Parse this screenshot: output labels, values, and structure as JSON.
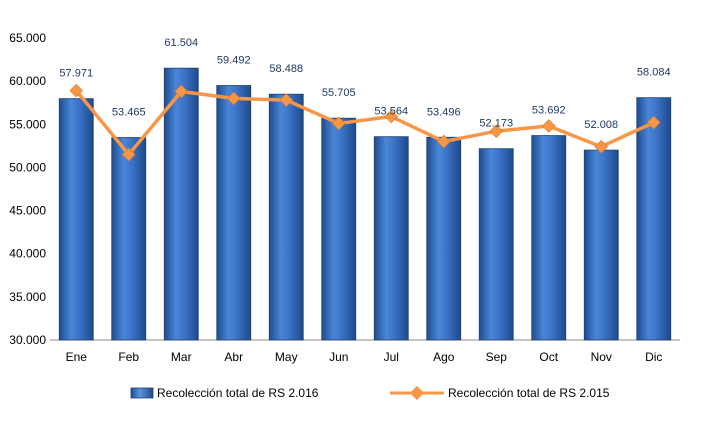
{
  "chart_data": {
    "type": "bar",
    "categories": [
      "Ene",
      "Feb",
      "Mar",
      "Abr",
      "May",
      "Jun",
      "Jul",
      "Ago",
      "Sep",
      "Oct",
      "Nov",
      "Dic"
    ],
    "series": [
      {
        "name": "Recolección total de RS 2.016",
        "type": "bar",
        "values": [
          57971,
          53465,
          61504,
          59492,
          58488,
          55705,
          53564,
          53496,
          52173,
          53692,
          52008,
          58084
        ],
        "data_labels": [
          "57.971",
          "53.465",
          "61.504",
          "59.492",
          "58.488",
          "55.705",
          "53.564",
          "53.496",
          "52.173",
          "53.692",
          "52.008",
          "58.084"
        ],
        "color": "#3a6fc4"
      },
      {
        "name": "Recolección total de RS 2.015",
        "type": "line",
        "values": [
          58900,
          51500,
          58800,
          58000,
          57800,
          55100,
          55900,
          53000,
          54200,
          54800,
          52400,
          55200
        ],
        "color": "#f79646"
      }
    ],
    "yticks": [
      30000,
      35000,
      40000,
      45000,
      50000,
      55000,
      60000,
      65000
    ],
    "ytick_labels": [
      "30.000",
      "35.000",
      "40.000",
      "45.000",
      "50.000",
      "55.000",
      "60.000",
      "65.000"
    ],
    "ylim": [
      30000,
      65000
    ],
    "title": "",
    "xlabel": "",
    "ylabel": "",
    "grid": false,
    "legend": "bottom"
  }
}
